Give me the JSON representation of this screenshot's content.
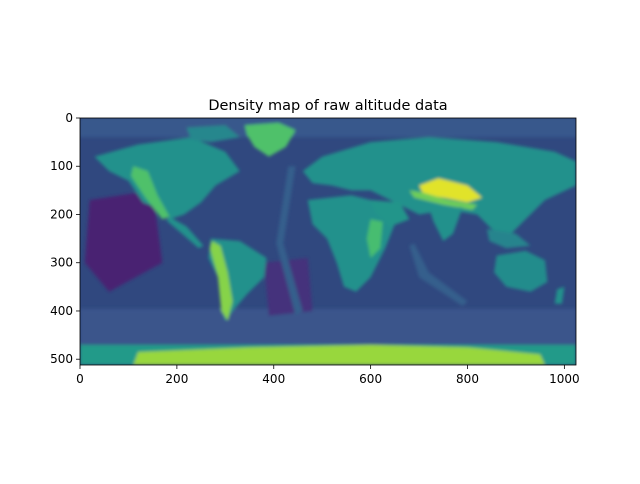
{
  "chart_data": {
    "type": "heatmap",
    "title": "Density map of raw altitude data",
    "xlabel": "",
    "ylabel": "",
    "xlim": [
      0,
      1024
    ],
    "ylim": [
      512,
      0
    ],
    "x_ticks": [
      0,
      200,
      400,
      600,
      800,
      1000
    ],
    "y_ticks": [
      0,
      100,
      200,
      300,
      400,
      500
    ],
    "x_tick_labels": [
      "0",
      "200",
      "400",
      "600",
      "800",
      "1000"
    ],
    "y_tick_labels": [
      "0",
      "100",
      "200",
      "300",
      "400",
      "500"
    ],
    "colormap": "viridis",
    "grid": false,
    "image_grid_size": [
      512,
      1024
    ],
    "regions": [
      {
        "name": "ocean",
        "level": 0.22
      },
      {
        "name": "deep-ocean-trench",
        "level": 0.12
      },
      {
        "name": "mid-ocean-ridge",
        "level": 0.3
      },
      {
        "name": "continental-lowland",
        "level": 0.5
      },
      {
        "name": "mountain-range",
        "level": 0.78
      },
      {
        "name": "tibetan-plateau",
        "level": 0.96
      },
      {
        "name": "greenland-ice",
        "level": 0.72
      },
      {
        "name": "antarctica",
        "level": 0.85
      }
    ]
  },
  "colors": {
    "viridis_low": "#30487f",
    "viridis_mid": "#2a9f8a",
    "viridis_high": "#d8e22b",
    "axis": "#000000",
    "background": "#ffffff"
  }
}
